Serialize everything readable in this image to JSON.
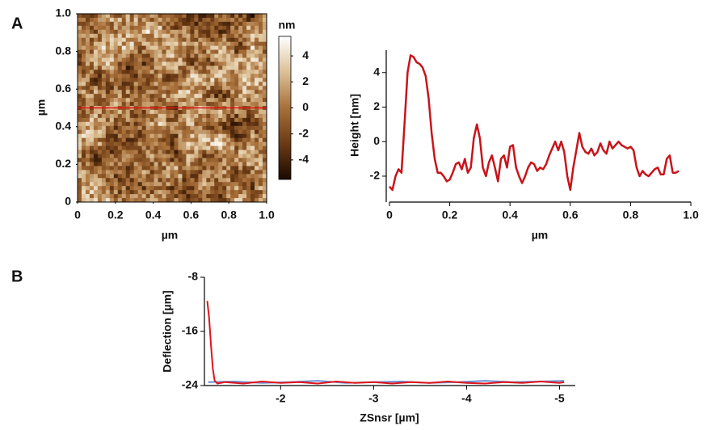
{
  "chart_data": [
    {
      "type": "image",
      "panel": "A",
      "xlabel": "µm",
      "ylabel": "µm",
      "xlim": [
        0,
        1
      ],
      "ylim": [
        0,
        1
      ],
      "xticks": [
        0,
        0.2,
        0.4,
        0.6,
        0.8,
        {
          "value": 1,
          "label": "1.0"
        }
      ],
      "yticks": [
        0,
        0.2,
        0.4,
        0.6,
        0.8,
        {
          "value": 1,
          "label": "1.0"
        }
      ],
      "colorbar_label": "nm",
      "clim": [
        -5.5,
        5.5
      ],
      "cticks": [
        -4,
        -2,
        0,
        2,
        4
      ],
      "colormap": [
        "#1a0a01",
        "#6b3a14",
        "#a8703a",
        "#dcc096",
        "#ffffff"
      ],
      "line_y": 0.5,
      "line_color": "#e01010"
    },
    {
      "type": "line",
      "xlabel": "µm",
      "ylabel": "Height [nm]",
      "xlim": [
        0,
        1
      ],
      "ylim": [
        -3.5,
        5.3
      ],
      "xticks": [
        0,
        0.2,
        0.4,
        0.6,
        0.8,
        {
          "value": 1,
          "label": "1.0"
        }
      ],
      "yticks": [
        -2,
        0,
        2,
        4
      ],
      "x": [
        0,
        0.01,
        0.02,
        0.03,
        0.04,
        0.05,
        0.06,
        0.07,
        0.08,
        0.09,
        0.1,
        0.11,
        0.12,
        0.13,
        0.14,
        0.15,
        0.16,
        0.17,
        0.18,
        0.19,
        0.2,
        0.21,
        0.22,
        0.23,
        0.24,
        0.25,
        0.26,
        0.27,
        0.28,
        0.29,
        0.3,
        0.31,
        0.32,
        0.33,
        0.34,
        0.35,
        0.36,
        0.37,
        0.38,
        0.39,
        0.4,
        0.41,
        0.42,
        0.43,
        0.44,
        0.45,
        0.46,
        0.47,
        0.48,
        0.49,
        0.5,
        0.51,
        0.52,
        0.53,
        0.54,
        0.55,
        0.56,
        0.57,
        0.58,
        0.59,
        0.6,
        0.61,
        0.62,
        0.63,
        0.64,
        0.65,
        0.66,
        0.67,
        0.68,
        0.69,
        0.7,
        0.71,
        0.72,
        0.73,
        0.74,
        0.75,
        0.76,
        0.77,
        0.78,
        0.79,
        0.8,
        0.81,
        0.82,
        0.83,
        0.84,
        0.85,
        0.86,
        0.87,
        0.88,
        0.89,
        0.9,
        0.91,
        0.92,
        0.93,
        0.94,
        0.95,
        0.96
      ],
      "series": [
        {
          "color": "#c8141a",
          "values": [
            -2.6,
            -2.8,
            -2.0,
            -1.6,
            -1.8,
            1.0,
            4.0,
            5.0,
            4.9,
            4.6,
            4.5,
            4.3,
            3.8,
            2.5,
            0.5,
            -1.0,
            -1.8,
            -1.8,
            -2.0,
            -2.3,
            -2.2,
            -1.8,
            -1.3,
            -1.2,
            -1.6,
            -1.0,
            -1.8,
            -1.5,
            0.2,
            1.0,
            0.2,
            -1.5,
            -2.0,
            -1.2,
            -0.8,
            -1.5,
            -2.3,
            -1.0,
            -0.8,
            -1.5,
            -0.3,
            -0.2,
            -1.5,
            -2.0,
            -2.4,
            -2.0,
            -1.5,
            -1.2,
            -1.3,
            -1.7,
            -1.5,
            -1.6,
            -1.3,
            -0.8,
            -0.4,
            0.0,
            -0.5,
            0.0,
            -0.6,
            -2.0,
            -2.8,
            -1.5,
            -0.5,
            0.5,
            -0.3,
            -0.6,
            -0.7,
            -0.4,
            -0.8,
            -0.6,
            -0.1,
            -0.5,
            -0.7,
            0.0,
            -0.4,
            -0.2,
            0.0,
            -0.2,
            -0.3,
            -0.4,
            -0.3,
            -0.5,
            -1.5,
            -2.0,
            -1.7,
            -1.9,
            -2.0,
            -1.8,
            -1.6,
            -1.5,
            -1.9,
            -1.9,
            -1.0,
            -0.8,
            -1.8,
            -1.8,
            -1.7
          ]
        }
      ]
    },
    {
      "type": "line",
      "panel": "B",
      "xlabel": "ZSnsr [µm]",
      "ylabel": "Deflection [µm]",
      "xlim": [
        -1.18,
        -5.17
      ],
      "ylim": [
        -24,
        -8
      ],
      "xticks": [
        -2,
        -3,
        -4,
        -5
      ],
      "yticks": [
        -8,
        -16,
        -24
      ],
      "series": [
        {
          "color": "#6b8fd6",
          "x": [
            -1.22,
            -1.5,
            -1.8,
            -2.1,
            -2.4,
            -2.7,
            -3.0,
            -3.3,
            -3.6,
            -3.9,
            -4.2,
            -4.5,
            -4.8,
            -5.05
          ],
          "values": [
            -23.5,
            -23.4,
            -23.6,
            -23.5,
            -23.3,
            -23.6,
            -23.5,
            -23.4,
            -23.6,
            -23.5,
            -23.3,
            -23.5,
            -23.4,
            -23.3
          ]
        },
        {
          "color": "#e0141a",
          "x": [
            -1.21,
            -1.23,
            -1.25,
            -1.27,
            -1.29,
            -1.32,
            -1.4,
            -1.6,
            -1.8,
            -2.0,
            -2.2,
            -2.4,
            -2.6,
            -2.8,
            -3.0,
            -3.2,
            -3.4,
            -3.6,
            -3.8,
            -4.0,
            -4.2,
            -4.4,
            -4.6,
            -4.8,
            -5.0,
            -5.05
          ],
          "values": [
            -11.5,
            -14,
            -18,
            -21.5,
            -23.3,
            -23.7,
            -23.5,
            -23.7,
            -23.4,
            -23.6,
            -23.5,
            -23.7,
            -23.4,
            -23.6,
            -23.5,
            -23.7,
            -23.5,
            -23.6,
            -23.4,
            -23.6,
            -23.7,
            -23.5,
            -23.6,
            -23.4,
            -23.6,
            -23.5
          ]
        }
      ]
    }
  ]
}
